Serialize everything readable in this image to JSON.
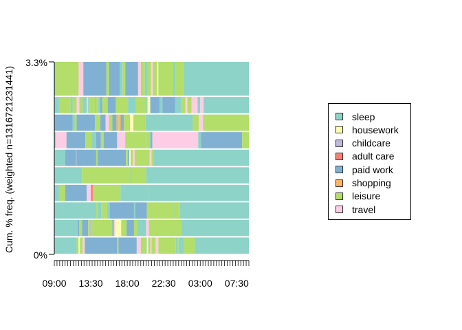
{
  "chart_data": {
    "type": "sequence_index_plot",
    "ylabel": "Cum. % freq. (weighted n=1316721231441)",
    "y_ticks": [
      "3.3%",
      "0%"
    ],
    "x_ticks": [
      "09:00",
      "13:30",
      "18:00",
      "22:30",
      "03:00",
      "07:30"
    ],
    "x_range": [
      "09:00",
      "09:00"
    ],
    "states": [
      {
        "name": "sleep",
        "color": "#8dd3c7"
      },
      {
        "name": "housework",
        "color": "#ffffb3"
      },
      {
        "name": "childcare",
        "color": "#bebada"
      },
      {
        "name": "adult care",
        "color": "#fb8072"
      },
      {
        "name": "paid work",
        "color": "#80b1d3"
      },
      {
        "name": "shopping",
        "color": "#fdb462"
      },
      {
        "name": "leisure",
        "color": "#b3de69"
      },
      {
        "name": "travel",
        "color": "#fccde5"
      }
    ],
    "sequences": [
      {
        "weight": 2.0,
        "spells": [
          [
            "sleep",
            "09:00"
          ],
          [
            "leisure",
            "09:10"
          ],
          [
            "travel",
            "12:00"
          ],
          [
            "paid work",
            "12:35"
          ],
          [
            "leisure",
            "15:25"
          ],
          [
            "paid work",
            "15:45"
          ],
          [
            "sleep",
            "17:05"
          ],
          [
            "leisure",
            "17:25"
          ],
          [
            "paid work",
            "17:45"
          ],
          [
            "travel",
            "19:20"
          ],
          [
            "leisure",
            "19:40"
          ],
          [
            "sleep",
            "20:10"
          ],
          [
            "leisure",
            "20:30"
          ],
          [
            "travel",
            "20:55"
          ],
          [
            "leisure",
            "21:10"
          ],
          [
            "housework",
            "21:40"
          ],
          [
            "leisure",
            "21:50"
          ],
          [
            "sleep",
            "23:40"
          ],
          [
            "leisure",
            "23:55"
          ],
          [
            "sleep",
            "01:00"
          ]
        ]
      },
      {
        "weight": 1.0,
        "spells": [
          [
            "sleep",
            "09:00"
          ],
          [
            "leisure",
            "09:35"
          ],
          [
            "sleep",
            "11:00"
          ],
          [
            "leisure",
            "11:15"
          ],
          [
            "travel",
            "11:45"
          ],
          [
            "leisure",
            "12:05"
          ],
          [
            "sleep",
            "12:30"
          ],
          [
            "travel",
            "13:00"
          ],
          [
            "sleep",
            "13:10"
          ],
          [
            "leisure",
            "13:15"
          ],
          [
            "sleep",
            "14:00"
          ],
          [
            "leisure",
            "14:10"
          ],
          [
            "sleep",
            "14:25"
          ],
          [
            "paid work",
            "14:40"
          ],
          [
            "leisure",
            "14:55"
          ],
          [
            "paid work",
            "15:35"
          ],
          [
            "leisure",
            "16:35"
          ],
          [
            "sleep",
            "18:05"
          ],
          [
            "leisure",
            "19:05"
          ],
          [
            "sleep",
            "20:20"
          ],
          [
            "housework",
            "20:30"
          ],
          [
            "paid work",
            "20:50"
          ],
          [
            "sleep",
            "22:00"
          ],
          [
            "paid work",
            "22:20"
          ],
          [
            "sleep",
            "23:55"
          ],
          [
            "leisure",
            "00:40"
          ],
          [
            "travel",
            "01:10"
          ],
          [
            "leisure",
            "01:25"
          ],
          [
            "travel",
            "01:55"
          ],
          [
            "sleep",
            "02:40"
          ],
          [
            "travel",
            "03:00"
          ],
          [
            "sleep",
            "03:25"
          ]
        ]
      },
      {
        "weight": 1.0,
        "spells": [
          [
            "paid work",
            "09:00"
          ],
          [
            "sleep",
            "11:15"
          ],
          [
            "leisure",
            "11:30"
          ],
          [
            "paid work",
            "11:45"
          ],
          [
            "leisure",
            "14:00"
          ],
          [
            "paid work",
            "14:40"
          ],
          [
            "travel",
            "15:20"
          ],
          [
            "leisure",
            "15:45"
          ],
          [
            "paid work",
            "16:10"
          ],
          [
            "shopping",
            "16:40"
          ],
          [
            "leisure",
            "16:55"
          ],
          [
            "adult care",
            "17:10"
          ],
          [
            "paid work",
            "17:20"
          ],
          [
            "leisure",
            "17:35"
          ],
          [
            "housework",
            "18:20"
          ],
          [
            "leisure",
            "18:45"
          ],
          [
            "sleep",
            "20:15"
          ],
          [
            "leisure",
            "02:05"
          ],
          [
            "travel",
            "02:50"
          ],
          [
            "leisure",
            "03:20"
          ]
        ]
      },
      {
        "weight": 1.0,
        "spells": [
          [
            "sleep",
            "09:00"
          ],
          [
            "travel",
            "09:10"
          ],
          [
            "paid work",
            "10:30"
          ],
          [
            "leisure",
            "12:50"
          ],
          [
            "sleep",
            "13:35"
          ],
          [
            "paid work",
            "14:10"
          ],
          [
            "leisure",
            "14:45"
          ],
          [
            "paid work",
            "15:05"
          ],
          [
            "travel",
            "16:45"
          ],
          [
            "leisure",
            "17:45"
          ],
          [
            "sleep",
            "20:15"
          ],
          [
            "leisure",
            "20:20"
          ],
          [
            "sleep",
            "20:45"
          ],
          [
            "paid work",
            "20:55"
          ],
          [
            "travel",
            "21:05"
          ],
          [
            "sleep",
            "02:45"
          ],
          [
            "paid work",
            "03:05"
          ],
          [
            "leisure",
            "08:10"
          ]
        ]
      },
      {
        "weight": 1.0,
        "spells": [
          [
            "sleep",
            "09:00"
          ],
          [
            "paid work",
            "10:20"
          ],
          [
            "childcare",
            "11:40"
          ],
          [
            "paid work",
            "11:45"
          ],
          [
            "leisure",
            "14:10"
          ],
          [
            "paid work",
            "14:20"
          ],
          [
            "leisure",
            "17:50"
          ],
          [
            "paid work",
            "18:05"
          ],
          [
            "housework",
            "18:15"
          ],
          [
            "leisure",
            "18:25"
          ],
          [
            "travel",
            "18:40"
          ],
          [
            "shopping",
            "18:55"
          ],
          [
            "leisure",
            "19:00"
          ],
          [
            "travel",
            "20:45"
          ],
          [
            "leisure",
            "21:00"
          ],
          [
            "sleep",
            "21:15"
          ]
        ]
      },
      {
        "weight": 1.0,
        "spells": [
          [
            "sleep",
            "09:00"
          ],
          [
            "leisure",
            "12:25"
          ],
          [
            "sleep",
            "18:25"
          ],
          [
            "leisure",
            "18:30"
          ],
          [
            "sleep",
            "20:20"
          ]
        ]
      },
      {
        "weight": 1.0,
        "spells": [
          [
            "sleep",
            "09:00"
          ],
          [
            "leisure",
            "09:35"
          ],
          [
            "paid work",
            "10:20"
          ],
          [
            "travel",
            "13:00"
          ],
          [
            "paid work",
            "13:30"
          ],
          [
            "adult care",
            "13:40"
          ],
          [
            "leisure",
            "13:45"
          ],
          [
            "sleep",
            "17:10"
          ],
          [
            "sleep",
            "20:40"
          ]
        ]
      },
      {
        "weight": 1.0,
        "spells": [
          [
            "sleep",
            "09:00"
          ],
          [
            "leisure",
            "14:10"
          ],
          [
            "sleep",
            "14:20"
          ],
          [
            "leisure",
            "14:50"
          ],
          [
            "sleep",
            "15:30"
          ],
          [
            "paid work",
            "15:50"
          ],
          [
            "sleep",
            "18:50"
          ],
          [
            "paid work",
            "19:00"
          ],
          [
            "leisure",
            "20:25"
          ],
          [
            "sleep",
            "23:50"
          ],
          [
            "leisure",
            "00:00"
          ],
          [
            "sleep",
            "00:30"
          ]
        ]
      },
      {
        "weight": 1.0,
        "spells": [
          [
            "sleep",
            "09:00"
          ],
          [
            "paid work",
            "11:55"
          ],
          [
            "leisure",
            "12:05"
          ],
          [
            "paid work",
            "12:25"
          ],
          [
            "leisure",
            "13:10"
          ],
          [
            "sleep",
            "13:20"
          ],
          [
            "childcare",
            "13:25"
          ],
          [
            "leisure",
            "13:30"
          ],
          [
            "paid work",
            "16:10"
          ],
          [
            "travel",
            "16:20"
          ],
          [
            "housework",
            "16:30"
          ],
          [
            "leisure",
            "17:15"
          ],
          [
            "paid work",
            "17:55"
          ],
          [
            "leisure",
            "18:50"
          ],
          [
            "sleep",
            "19:15"
          ],
          [
            "travel",
            "20:20"
          ],
          [
            "leisure",
            "20:40"
          ],
          [
            "sleep",
            "00:40"
          ]
        ]
      },
      {
        "weight": 1.0,
        "spells": [
          [
            "sleep",
            "09:00"
          ],
          [
            "leisure",
            "11:45"
          ],
          [
            "housework",
            "12:00"
          ],
          [
            "leisure",
            "12:10"
          ],
          [
            "travel",
            "12:30"
          ],
          [
            "paid work",
            "12:45"
          ],
          [
            "leisure",
            "16:45"
          ],
          [
            "paid work",
            "16:55"
          ],
          [
            "travel",
            "19:10"
          ],
          [
            "leisure",
            "19:40"
          ],
          [
            "sleep",
            "20:20"
          ],
          [
            "housework",
            "20:25"
          ],
          [
            "leisure",
            "20:35"
          ],
          [
            "travel",
            "20:50"
          ],
          [
            "leisure",
            "21:00"
          ],
          [
            "travel",
            "21:30"
          ],
          [
            "leisure",
            "21:50"
          ],
          [
            "sleep",
            "00:00"
          ],
          [
            "leisure",
            "00:10"
          ],
          [
            "sleep",
            "00:20"
          ],
          [
            "leisure",
            "01:00"
          ],
          [
            "sleep",
            "02:20"
          ]
        ]
      }
    ]
  }
}
